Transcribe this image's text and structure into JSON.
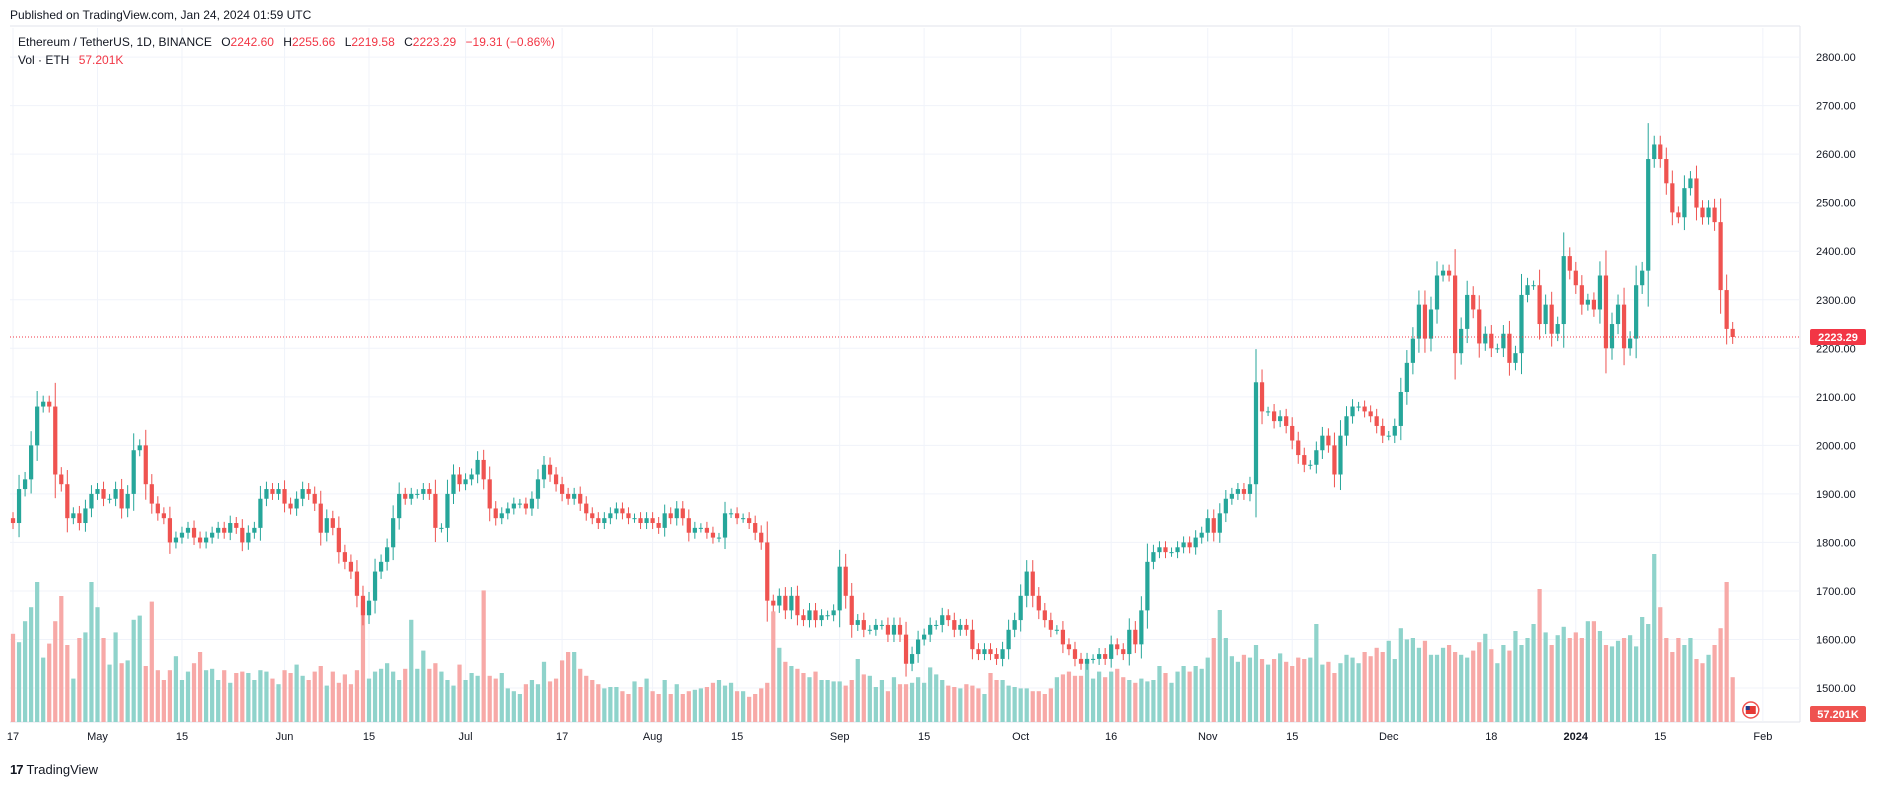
{
  "header": {
    "published": "Published on TradingView.com, Jan 24, 2024 01:59 UTC"
  },
  "legend": {
    "symbol": "Ethereum / TetherUS, 1D, BINANCE",
    "open_label": "O",
    "open": "2242.60",
    "high_label": "H",
    "high": "2255.66",
    "low_label": "L",
    "low": "2219.58",
    "close_label": "C",
    "close": "2223.29",
    "change": "−19.31 (−0.86%)",
    "vol_label": "Vol · ETH",
    "vol_value": "57.201K"
  },
  "footer": {
    "brand": "TradingView",
    "brand_logo": "17"
  },
  "colors": {
    "up": "#26a69a",
    "down": "#ef5350",
    "up_vol": "#8fd3cb",
    "down_vol": "#f7a9a7",
    "price_line": "#f23645",
    "grid": "#f0f3fa",
    "axis_text": "#131722"
  },
  "chart_data": {
    "type": "candlestick",
    "title": "Ethereum / TetherUS, 1D, BINANCE",
    "grid": true,
    "ylim": [
      1430,
      2860
    ],
    "yticks": [
      "2800.00",
      "2700.00",
      "2600.00",
      "2500.00",
      "2400.00",
      "2300.00",
      "2200.00",
      "2100.00",
      "2000.00",
      "1900.00",
      "1800.00",
      "1700.00",
      "1600.00",
      "1500.00"
    ],
    "ytick_values": [
      2800,
      2700,
      2600,
      2500,
      2400,
      2300,
      2200,
      2100,
      2000,
      1900,
      1800,
      1700,
      1600,
      1500
    ],
    "xticks": [
      {
        "label": "17",
        "day": 0
      },
      {
        "label": "May",
        "day": 14
      },
      {
        "label": "15",
        "day": 28
      },
      {
        "label": "Jun",
        "day": 45
      },
      {
        "label": "15",
        "day": 59
      },
      {
        "label": "Jul",
        "day": 75
      },
      {
        "label": "17",
        "day": 91
      },
      {
        "label": "Aug",
        "day": 106
      },
      {
        "label": "15",
        "day": 120
      },
      {
        "label": "Sep",
        "day": 137
      },
      {
        "label": "15",
        "day": 151
      },
      {
        "label": "Oct",
        "day": 167
      },
      {
        "label": "16",
        "day": 182
      },
      {
        "label": "Nov",
        "day": 198
      },
      {
        "label": "15",
        "day": 212
      },
      {
        "label": "Dec",
        "day": 228
      },
      {
        "label": "18",
        "day": 245
      },
      {
        "label": "2024",
        "day": 259,
        "bold": true
      },
      {
        "label": "15",
        "day": 273
      },
      {
        "label": "Feb",
        "day": 290
      }
    ],
    "last_price": 2223.29,
    "last_price_label": "2223.29",
    "last_volume_label": "57.201K",
    "closes": [
      1840,
      1910,
      1930,
      2000,
      2080,
      2090,
      2080,
      1940,
      1920,
      1850,
      1860,
      1840,
      1870,
      1900,
      1910,
      1890,
      1890,
      1910,
      1870,
      1900,
      1990,
      2000,
      1920,
      1880,
      1860,
      1850,
      1800,
      1810,
      1820,
      1830,
      1810,
      1800,
      1810,
      1820,
      1830,
      1820,
      1840,
      1830,
      1800,
      1820,
      1830,
      1890,
      1910,
      1900,
      1910,
      1880,
      1870,
      1890,
      1910,
      1900,
      1880,
      1820,
      1850,
      1830,
      1780,
      1760,
      1740,
      1690,
      1650,
      1680,
      1740,
      1760,
      1790,
      1850,
      1900,
      1890,
      1900,
      1900,
      1910,
      1900,
      1830,
      1830,
      1900,
      1940,
      1920,
      1930,
      1940,
      1970,
      1930,
      1870,
      1850,
      1860,
      1870,
      1880,
      1880,
      1870,
      1890,
      1930,
      1960,
      1940,
      1920,
      1900,
      1890,
      1900,
      1880,
      1860,
      1850,
      1840,
      1850,
      1860,
      1870,
      1860,
      1850,
      1850,
      1840,
      1850,
      1840,
      1830,
      1860,
      1850,
      1870,
      1850,
      1820,
      1830,
      1830,
      1820,
      1810,
      1810,
      1860,
      1860,
      1850,
      1850,
      1840,
      1820,
      1800,
      1680,
      1670,
      1690,
      1660,
      1690,
      1650,
      1640,
      1660,
      1640,
      1650,
      1650,
      1660,
      1750,
      1690,
      1630,
      1640,
      1620,
      1620,
      1630,
      1630,
      1610,
      1630,
      1610,
      1550,
      1570,
      1600,
      1610,
      1630,
      1630,
      1650,
      1640,
      1620,
      1630,
      1620,
      1580,
      1570,
      1580,
      1570,
      1560,
      1580,
      1620,
      1640,
      1690,
      1740,
      1690,
      1660,
      1640,
      1620,
      1620,
      1590,
      1580,
      1560,
      1550,
      1560,
      1560,
      1570,
      1560,
      1590,
      1580,
      1570,
      1620,
      1590,
      1660,
      1760,
      1780,
      1790,
      1780,
      1780,
      1790,
      1800,
      1790,
      1810,
      1820,
      1850,
      1820,
      1860,
      1890,
      1900,
      1910,
      1900,
      1920,
      2130,
      2070,
      2070,
      2050,
      2060,
      2040,
      2010,
      1980,
      1960,
      1960,
      1990,
      2020,
      2000,
      1940,
      2020,
      2060,
      2080,
      2080,
      2070,
      2060,
      2040,
      2020,
      2020,
      2040,
      2110,
      2170,
      2220,
      2290,
      2220,
      2280,
      2350,
      2360,
      2350,
      2190,
      2240,
      2310,
      2280,
      2210,
      2230,
      2200,
      2200,
      2230,
      2170,
      2190,
      2310,
      2330,
      2330,
      2250,
      2290,
      2230,
      2250,
      2390,
      2360,
      2330,
      2290,
      2300,
      2280,
      2350,
      2200,
      2250,
      2290,
      2200,
      2220,
      2330,
      2360,
      2590,
      2620,
      2590,
      2540,
      2480,
      2470,
      2530,
      2550,
      2490,
      2470,
      2490,
      2460,
      2320,
      2240,
      2223.29
    ],
    "volumes": [
      0.63,
      0.57,
      0.72,
      0.82,
      1.0,
      0.46,
      0.56,
      0.72,
      0.9,
      0.55,
      0.31,
      0.6,
      0.64,
      1.0,
      0.82,
      0.6,
      0.41,
      0.64,
      0.42,
      0.44,
      0.73,
      0.76,
      0.4,
      0.86,
      0.37,
      0.3,
      0.37,
      0.47,
      0.3,
      0.36,
      0.42,
      0.5,
      0.37,
      0.38,
      0.3,
      0.37,
      0.28,
      0.35,
      0.36,
      0.35,
      0.3,
      0.37,
      0.36,
      0.31,
      0.27,
      0.37,
      0.35,
      0.41,
      0.33,
      0.3,
      0.36,
      0.4,
      0.26,
      0.36,
      0.28,
      0.34,
      0.27,
      0.37,
      0.86,
      0.31,
      0.36,
      0.38,
      0.42,
      0.36,
      0.3,
      0.38,
      0.73,
      0.38,
      0.51,
      0.38,
      0.42,
      0.36,
      0.3,
      0.26,
      0.41,
      0.3,
      0.35,
      0.33,
      0.94,
      0.33,
      0.31,
      0.35,
      0.24,
      0.22,
      0.2,
      0.27,
      0.3,
      0.27,
      0.43,
      0.29,
      0.31,
      0.44,
      0.5,
      0.5,
      0.38,
      0.33,
      0.3,
      0.27,
      0.24,
      0.25,
      0.25,
      0.22,
      0.2,
      0.29,
      0.25,
      0.31,
      0.22,
      0.2,
      0.3,
      0.2,
      0.27,
      0.2,
      0.22,
      0.23,
      0.24,
      0.25,
      0.28,
      0.3,
      0.26,
      0.28,
      0.22,
      0.22,
      0.18,
      0.2,
      0.24,
      0.28,
      0.79,
      0.53,
      0.43,
      0.4,
      0.38,
      0.35,
      0.32,
      0.36,
      0.3,
      0.3,
      0.29,
      0.29,
      0.26,
      0.3,
      0.45,
      0.34,
      0.33,
      0.25,
      0.3,
      0.22,
      0.32,
      0.27,
      0.27,
      0.28,
      0.32,
      0.28,
      0.39,
      0.34,
      0.3,
      0.26,
      0.25,
      0.24,
      0.27,
      0.26,
      0.24,
      0.2,
      0.35,
      0.3,
      0.3,
      0.26,
      0.25,
      0.24,
      0.24,
      0.22,
      0.22,
      0.2,
      0.24,
      0.32,
      0.34,
      0.36,
      0.33,
      0.33,
      0.45,
      0.31,
      0.36,
      0.32,
      0.36,
      0.38,
      0.32,
      0.3,
      0.28,
      0.31,
      0.29,
      0.3,
      0.4,
      0.35,
      0.28,
      0.36,
      0.4,
      0.36,
      0.4,
      0.38,
      0.46,
      0.6,
      0.8,
      0.6,
      0.47,
      0.43,
      0.48,
      0.46,
      0.55,
      0.45,
      0.41,
      0.45,
      0.49,
      0.43,
      0.4,
      0.46,
      0.45,
      0.46,
      0.7,
      0.41,
      0.43,
      0.35,
      0.42,
      0.48,
      0.46,
      0.42,
      0.5,
      0.47,
      0.53,
      0.5,
      0.58,
      0.45,
      0.67,
      0.59,
      0.6,
      0.53,
      0.58,
      0.48,
      0.48,
      0.53,
      0.55,
      0.5,
      0.48,
      0.46,
      0.51,
      0.57,
      0.63,
      0.52,
      0.42,
      0.55,
      0.51,
      0.65,
      0.55,
      0.6,
      0.7,
      0.95,
      0.64,
      0.55,
      0.62,
      0.68,
      0.6,
      0.64,
      0.6,
      0.72,
      0.72,
      0.65,
      0.55,
      0.54,
      0.58,
      0.6,
      0.62,
      0.54,
      0.75,
      0.7,
      1.2,
      0.82,
      0.6,
      0.5,
      0.6,
      0.55,
      0.6,
      0.45,
      0.42,
      0.48,
      0.55,
      0.67,
      1.0,
      0.32
    ]
  }
}
